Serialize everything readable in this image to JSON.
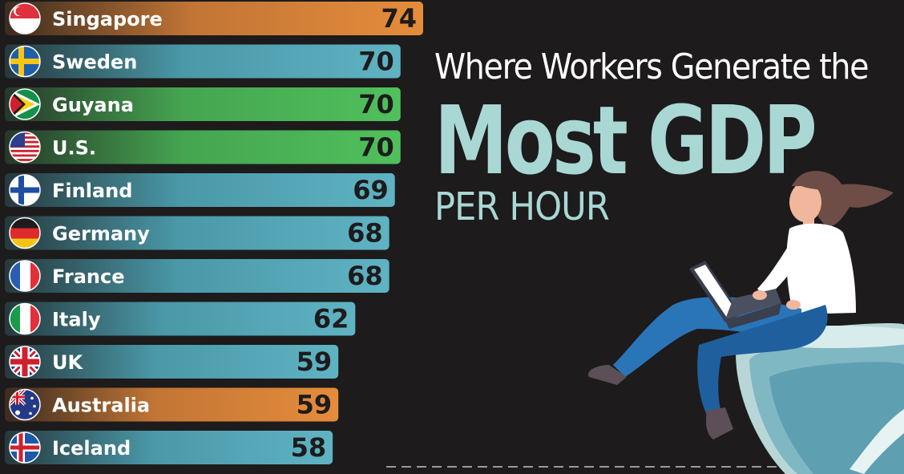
{
  "headline": {
    "line1": "Where Workers Generate the",
    "line2": "Most GDP",
    "line3": "PER HOUR"
  },
  "colors": {
    "background": "#1d1b1c",
    "bar_blue": "#5aaebf",
    "bar_green": "#4cba5a",
    "bar_orange": "#e1893a",
    "headline_accent": "#a9d7d4"
  },
  "chart_data": {
    "type": "bar",
    "orientation": "horizontal",
    "categories": [
      "Singapore",
      "Sweden",
      "Guyana",
      "U.S.",
      "Finland",
      "Germany",
      "France",
      "Italy",
      "UK",
      "Australia",
      "Iceland"
    ],
    "values": [
      74,
      70,
      70,
      70,
      69,
      68,
      68,
      62,
      59,
      59,
      58
    ],
    "bar_colors": [
      "orange",
      "blue",
      "green",
      "green",
      "blue",
      "blue",
      "blue",
      "blue",
      "blue",
      "orange",
      "blue"
    ],
    "flag_icons": [
      "singapore-flag-icon",
      "sweden-flag-icon",
      "guyana-flag-icon",
      "us-flag-icon",
      "finland-flag-icon",
      "germany-flag-icon",
      "france-flag-icon",
      "italy-flag-icon",
      "uk-flag-icon",
      "australia-flag-icon",
      "iceland-flag-icon"
    ],
    "title": "",
    "xlabel": "",
    "ylabel": "",
    "data_labels": true,
    "grid": false,
    "legend": "none"
  }
}
